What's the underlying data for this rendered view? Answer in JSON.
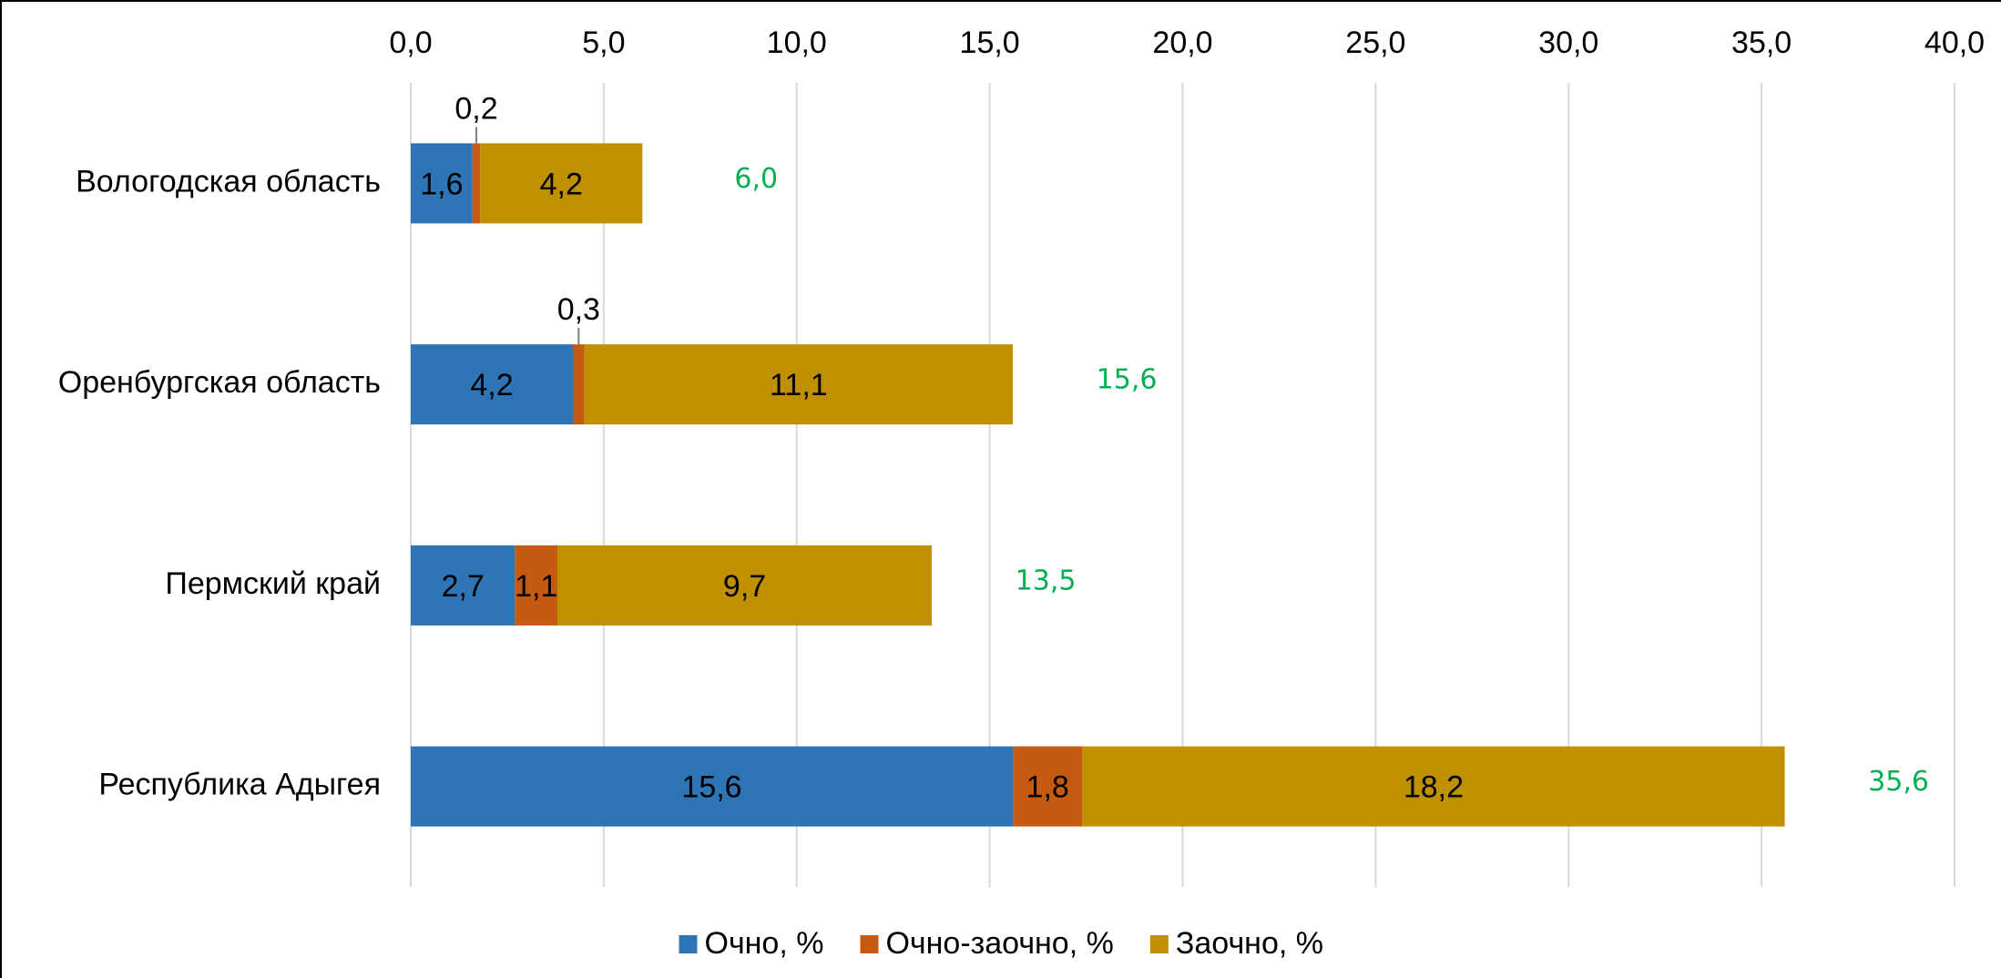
{
  "chart_data": {
    "type": "stacked-barh",
    "categories": [
      "Вологодская область",
      "Оренбургская область",
      "Пермский край",
      "Республика Адыгея"
    ],
    "series": [
      {
        "name": "Очно, %",
        "color": "#2e75b6",
        "values": [
          1.6,
          4.2,
          2.7,
          15.6
        ],
        "value_labels": [
          "1,6",
          "4,2",
          "2,7",
          "15,6"
        ]
      },
      {
        "name": "Очно-заочно, %",
        "color": "#c55a11",
        "values": [
          0.2,
          0.3,
          1.1,
          1.8
        ],
        "value_labels": [
          "0,2",
          "0,3",
          "1,1",
          "1,8"
        ]
      },
      {
        "name": "Заочно, %",
        "color": "#bf9000",
        "values": [
          4.2,
          11.1,
          9.7,
          18.2
        ],
        "value_labels": [
          "4,2",
          "11,1",
          "9,7",
          "18,2"
        ]
      }
    ],
    "totals": {
      "color": "#00b050",
      "values": [
        6.0,
        15.6,
        13.5,
        35.6
      ],
      "value_labels": [
        "6,0",
        "15,6",
        "13,5",
        "35,6"
      ]
    },
    "xlim": [
      0,
      40
    ],
    "xticks": [
      {
        "value": 0,
        "label": "0,0"
      },
      {
        "value": 5,
        "label": "5,0"
      },
      {
        "value": 10,
        "label": "10,0"
      },
      {
        "value": 15,
        "label": "15,0"
      },
      {
        "value": 20,
        "label": "20,0"
      },
      {
        "value": 25,
        "label": "25,0"
      },
      {
        "value": 30,
        "label": "30,0"
      },
      {
        "value": 35,
        "label": "35,0"
      },
      {
        "value": 40,
        "label": "40,0"
      }
    ],
    "grid": true,
    "legend": "bottom"
  }
}
